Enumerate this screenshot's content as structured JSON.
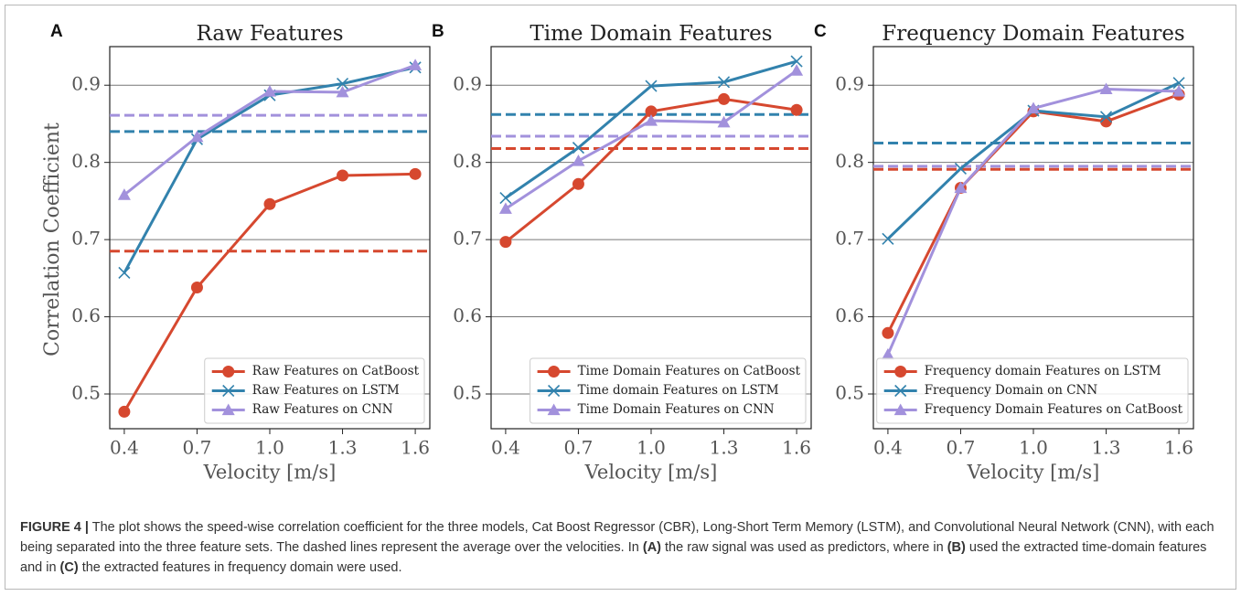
{
  "chart_data": [
    {
      "type": "line",
      "panel": "A",
      "title": "Raw Features",
      "ylabel": "Correlation Coefficient",
      "xlabel": "Velocity [m/s]",
      "x": [
        0.4,
        0.7,
        1.0,
        1.3,
        1.6
      ],
      "xlim": [
        0.34,
        1.66
      ],
      "ylim": [
        0.455,
        0.95
      ],
      "xticks": [
        0.4,
        0.7,
        {
          "value": 1,
          "label": "1.0"
        },
        1.3,
        1.6
      ],
      "yticks": [
        0.5,
        0.6,
        0.7,
        0.8,
        0.9
      ],
      "grid": true,
      "legend": "lower right",
      "series": [
        {
          "name": "Raw Features on CatBoost",
          "color": "#d6482f",
          "marker": "circle",
          "values": [
            0.477,
            0.638,
            0.746,
            0.783,
            0.785
          ],
          "mean": 0.685
        },
        {
          "name": "Raw Features on LSTM",
          "color": "#3282ad",
          "marker": "x",
          "values": [
            0.657,
            0.83,
            0.887,
            0.902,
            0.923
          ],
          "mean": 0.84
        },
        {
          "name": "Raw Features on CNN",
          "color": "#a291dc",
          "marker": "triangle",
          "values": [
            0.758,
            0.833,
            0.892,
            0.891,
            0.926
          ],
          "mean": 0.861
        }
      ]
    },
    {
      "type": "line",
      "panel": "B",
      "title": "Time Domain Features",
      "xlabel": "Velocity [m/s]",
      "x": [
        0.4,
        0.7,
        1.0,
        1.3,
        1.6
      ],
      "xlim": [
        0.34,
        1.66
      ],
      "ylim": [
        0.455,
        0.95
      ],
      "xticks": [
        0.4,
        0.7,
        {
          "value": 1,
          "label": "1.0"
        },
        1.3,
        1.6
      ],
      "yticks": [
        0.5,
        0.6,
        0.7,
        0.8,
        0.9
      ],
      "grid": true,
      "legend": "lower right",
      "series": [
        {
          "name": "Time Domain Features on CatBoost",
          "color": "#d6482f",
          "marker": "circle",
          "values": [
            0.697,
            0.772,
            0.866,
            0.882,
            0.868
          ],
          "mean": 0.818
        },
        {
          "name": "Time domain Features on LSTM",
          "color": "#3282ad",
          "marker": "x",
          "values": [
            0.754,
            0.819,
            0.899,
            0.904,
            0.931
          ],
          "mean": 0.862
        },
        {
          "name": "Time Domain Features on CNN",
          "color": "#a291dc",
          "marker": "triangle",
          "values": [
            0.74,
            0.802,
            0.854,
            0.852,
            0.919
          ],
          "mean": 0.834
        }
      ]
    },
    {
      "type": "line",
      "panel": "C",
      "title": "Frequency Domain Features",
      "xlabel": "Velocity [m/s]",
      "x": [
        0.4,
        0.7,
        1.0,
        1.3,
        1.6
      ],
      "xlim": [
        0.34,
        1.66
      ],
      "ylim": [
        0.455,
        0.95
      ],
      "xticks": [
        0.4,
        0.7,
        {
          "value": 1,
          "label": "1.0"
        },
        1.3,
        1.6
      ],
      "yticks": [
        0.5,
        0.6,
        0.7,
        0.8,
        0.9
      ],
      "grid": true,
      "legend": "lower right",
      "series": [
        {
          "name": "Frequency domain Features on LSTM",
          "color": "#d6482f",
          "marker": "circle",
          "values": [
            0.579,
            0.767,
            0.866,
            0.853,
            0.888
          ],
          "mean": 0.791
        },
        {
          "name": "Frequency Domain on CNN",
          "color": "#3282ad",
          "marker": "x",
          "values": [
            0.701,
            0.792,
            0.867,
            0.859,
            0.903
          ],
          "mean": 0.825
        },
        {
          "name": "Frequency Domain Features on CatBoost",
          "color": "#a291dc",
          "marker": "triangle",
          "values": [
            0.551,
            0.767,
            0.87,
            0.895,
            0.892
          ],
          "mean": 0.795
        }
      ]
    }
  ],
  "caption": [
    {
      "text": "FIGURE 4 |",
      "bold": true
    },
    {
      "text": " The plot shows the speed-wise correlation coefficient for the three models, Cat Boost Regressor (CBR), Long-Short Term Memory (LSTM), and Convolutional Neural Network (CNN), with each being separated into the three feature sets. The dashed lines represent the average over the velocities. In ",
      "bold": false
    },
    {
      "text": "(A)",
      "bold": true
    },
    {
      "text": " the raw signal was used as predictors, where in ",
      "bold": false
    },
    {
      "text": "(B)",
      "bold": true
    },
    {
      "text": " used the extracted time-domain features and in ",
      "bold": false
    },
    {
      "text": "(C)",
      "bold": true
    },
    {
      "text": " the extracted features in frequency domain were used.",
      "bold": false
    }
  ]
}
